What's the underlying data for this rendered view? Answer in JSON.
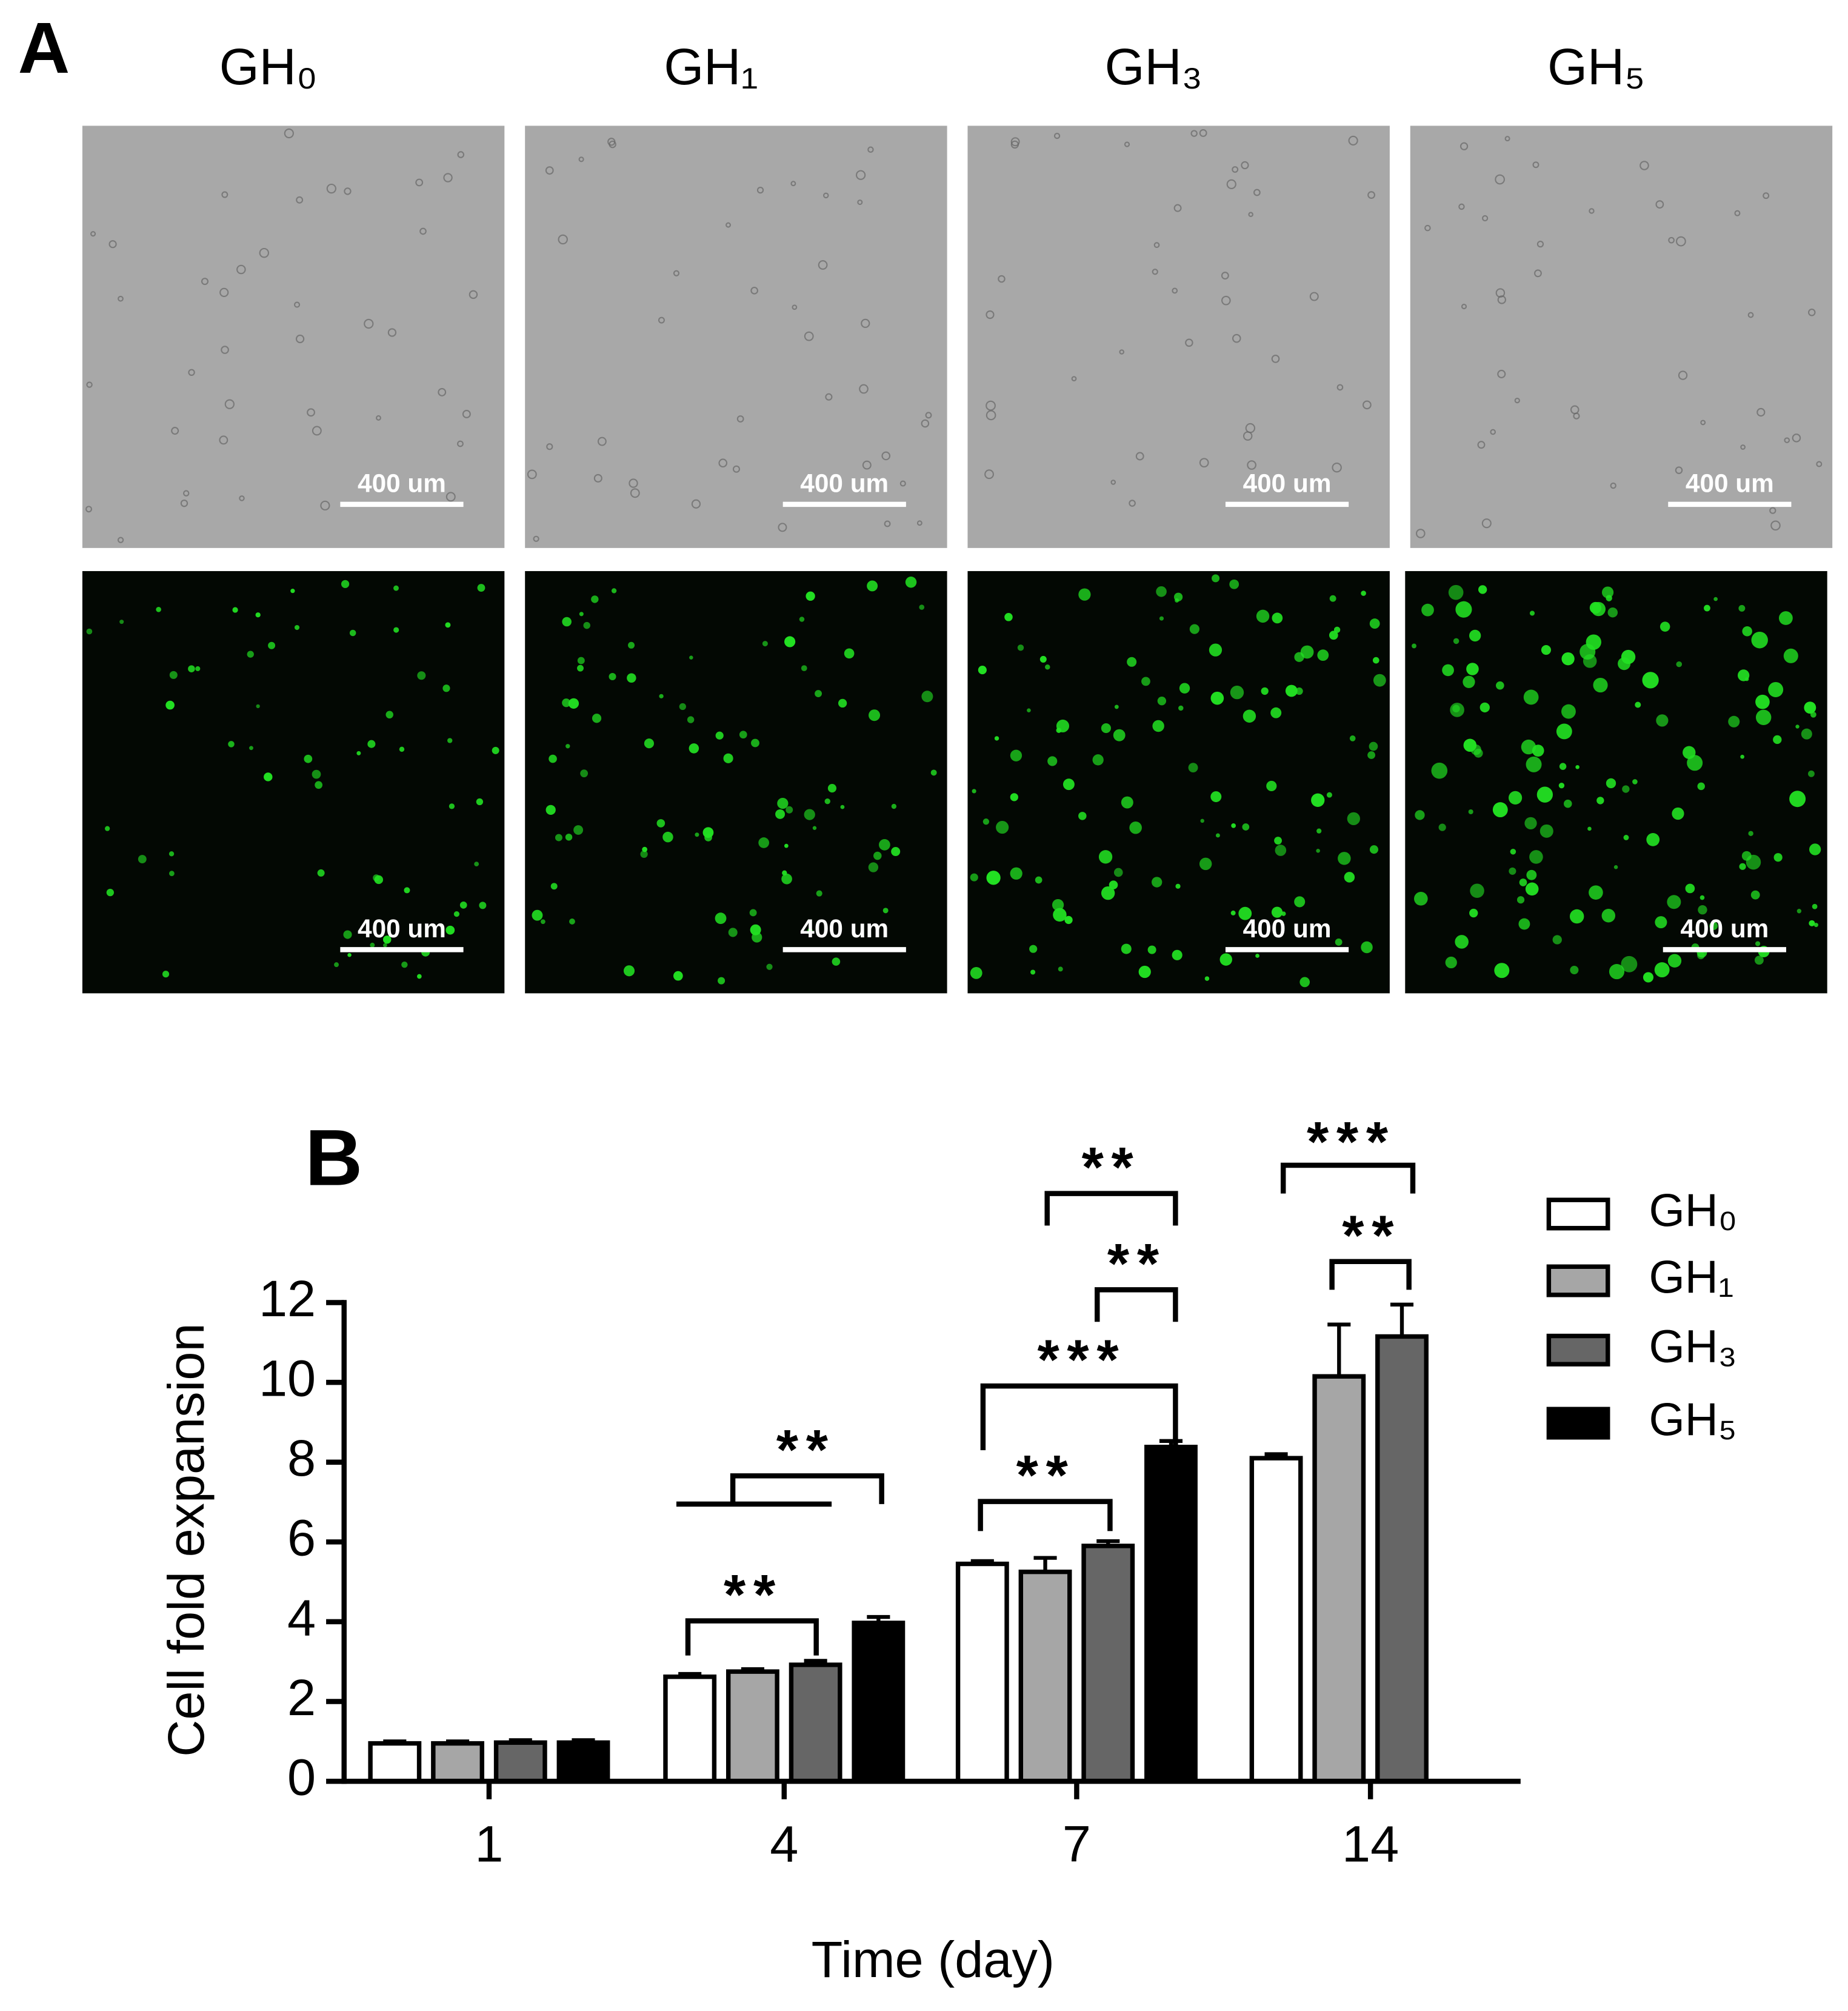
{
  "panel_a": {
    "label": "A",
    "columns": [
      "GH₀",
      "GH₁",
      "GH₃",
      "GH₅"
    ],
    "scale_bar": "400 um"
  },
  "chart_data": {
    "type": "bar",
    "panel_label": "B",
    "x_label": "Time (day)",
    "y_label": "Cell fold expansion",
    "categories": [
      "1",
      "4",
      "7",
      "14"
    ],
    "series": [
      {
        "name": "GH₀",
        "color": "#ffffff",
        "values": [
          0.95,
          2.62,
          5.45,
          8.1
        ],
        "errors": [
          0.05,
          0.07,
          0.07,
          0.1
        ]
      },
      {
        "name": "GH₁",
        "color": "#a6a6a6",
        "values": [
          0.95,
          2.75,
          5.25,
          10.15
        ],
        "errors": [
          0.05,
          0.06,
          0.35,
          1.3
        ]
      },
      {
        "name": "GH₃",
        "color": "#666666",
        "values": [
          0.97,
          2.92,
          5.9,
          11.15
        ],
        "errors": [
          0.06,
          0.1,
          0.12,
          0.8
        ]
      },
      {
        "name": "GH₅",
        "color": "#000000",
        "values": [
          0.97,
          3.97,
          8.38,
          null
        ],
        "errors": [
          0.06,
          0.15,
          0.15,
          null
        ]
      }
    ],
    "ylim": [
      0,
      12
    ],
    "yticks": [
      0,
      2,
      4,
      6,
      8,
      10,
      12
    ],
    "annotations": [
      "**",
      "**",
      "**",
      "***",
      "**",
      "**",
      "***",
      "**"
    ]
  }
}
